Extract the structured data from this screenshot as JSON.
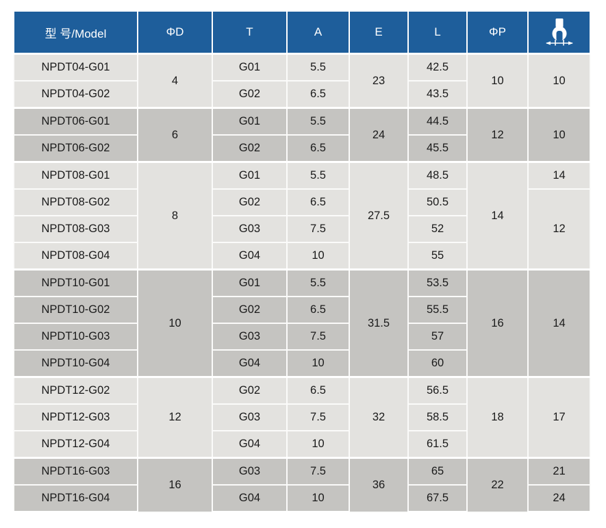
{
  "table": {
    "columns": [
      "型 号/Model",
      "ΦD",
      "T",
      "A",
      "E",
      "L",
      "ΦP"
    ],
    "icons": {
      "last_column_header": "wrench-width-icon"
    },
    "groups": [
      {
        "shade": "light",
        "d": "4",
        "e": "23",
        "p": "10",
        "s": [
          {
            "value": "10",
            "span": 2
          }
        ],
        "rows": [
          {
            "model": "NPDT04-G01",
            "t": "G01",
            "a": "5.5",
            "l": "42.5"
          },
          {
            "model": "NPDT04-G02",
            "t": "G02",
            "a": "6.5",
            "l": "43.5"
          }
        ]
      },
      {
        "shade": "dark",
        "d": "6",
        "e": "24",
        "p": "12",
        "s": [
          {
            "value": "10",
            "span": 2
          }
        ],
        "rows": [
          {
            "model": "NPDT06-G01",
            "t": "G01",
            "a": "5.5",
            "l": "44.5"
          },
          {
            "model": "NPDT06-G02",
            "t": "G02",
            "a": "6.5",
            "l": "45.5"
          }
        ]
      },
      {
        "shade": "light",
        "d": "8",
        "e": "27.5",
        "p": "14",
        "s": [
          {
            "value": "14",
            "span": 1
          },
          {
            "value": "12",
            "span": 3
          }
        ],
        "rows": [
          {
            "model": "NPDT08-G01",
            "t": "G01",
            "a": "5.5",
            "l": "48.5"
          },
          {
            "model": "NPDT08-G02",
            "t": "G02",
            "a": "6.5",
            "l": "50.5"
          },
          {
            "model": "NPDT08-G03",
            "t": "G03",
            "a": "7.5",
            "l": "52"
          },
          {
            "model": "NPDT08-G04",
            "t": "G04",
            "a": "10",
            "l": "55"
          }
        ]
      },
      {
        "shade": "dark",
        "d": "10",
        "e": "31.5",
        "p": "16",
        "s": [
          {
            "value": "14",
            "span": 4
          }
        ],
        "rows": [
          {
            "model": "NPDT10-G01",
            "t": "G01",
            "a": "5.5",
            "l": "53.5"
          },
          {
            "model": "NPDT10-G02",
            "t": "G02",
            "a": "6.5",
            "l": "55.5"
          },
          {
            "model": "NPDT10-G03",
            "t": "G03",
            "a": "7.5",
            "l": "57"
          },
          {
            "model": "NPDT10-G04",
            "t": "G04",
            "a": "10",
            "l": "60"
          }
        ]
      },
      {
        "shade": "light",
        "d": "12",
        "e": "32",
        "p": "18",
        "s": [
          {
            "value": "17",
            "span": 3
          }
        ],
        "rows": [
          {
            "model": "NPDT12-G02",
            "t": "G02",
            "a": "6.5",
            "l": "56.5"
          },
          {
            "model": "NPDT12-G03",
            "t": "G03",
            "a": "7.5",
            "l": "58.5"
          },
          {
            "model": "NPDT12-G04",
            "t": "G04",
            "a": "10",
            "l": "61.5"
          }
        ]
      },
      {
        "shade": "dark",
        "d": "16",
        "e": "36",
        "p": "22",
        "s": [
          {
            "value": "21",
            "span": 1
          },
          {
            "value": "24",
            "span": 1
          }
        ],
        "rows": [
          {
            "model": "NPDT16-G03",
            "t": "G03",
            "a": "7.5",
            "l": "65"
          },
          {
            "model": "NPDT16-G04",
            "t": "G04",
            "a": "10",
            "l": "67.5"
          }
        ]
      }
    ]
  },
  "colors": {
    "header_bg": "#1e5e9b",
    "header_text": "#ffffff",
    "row_light": "#e3e2df",
    "row_dark": "#c5c4c1",
    "divider": "#ffffff",
    "cell_text": "#1a1a1a"
  }
}
